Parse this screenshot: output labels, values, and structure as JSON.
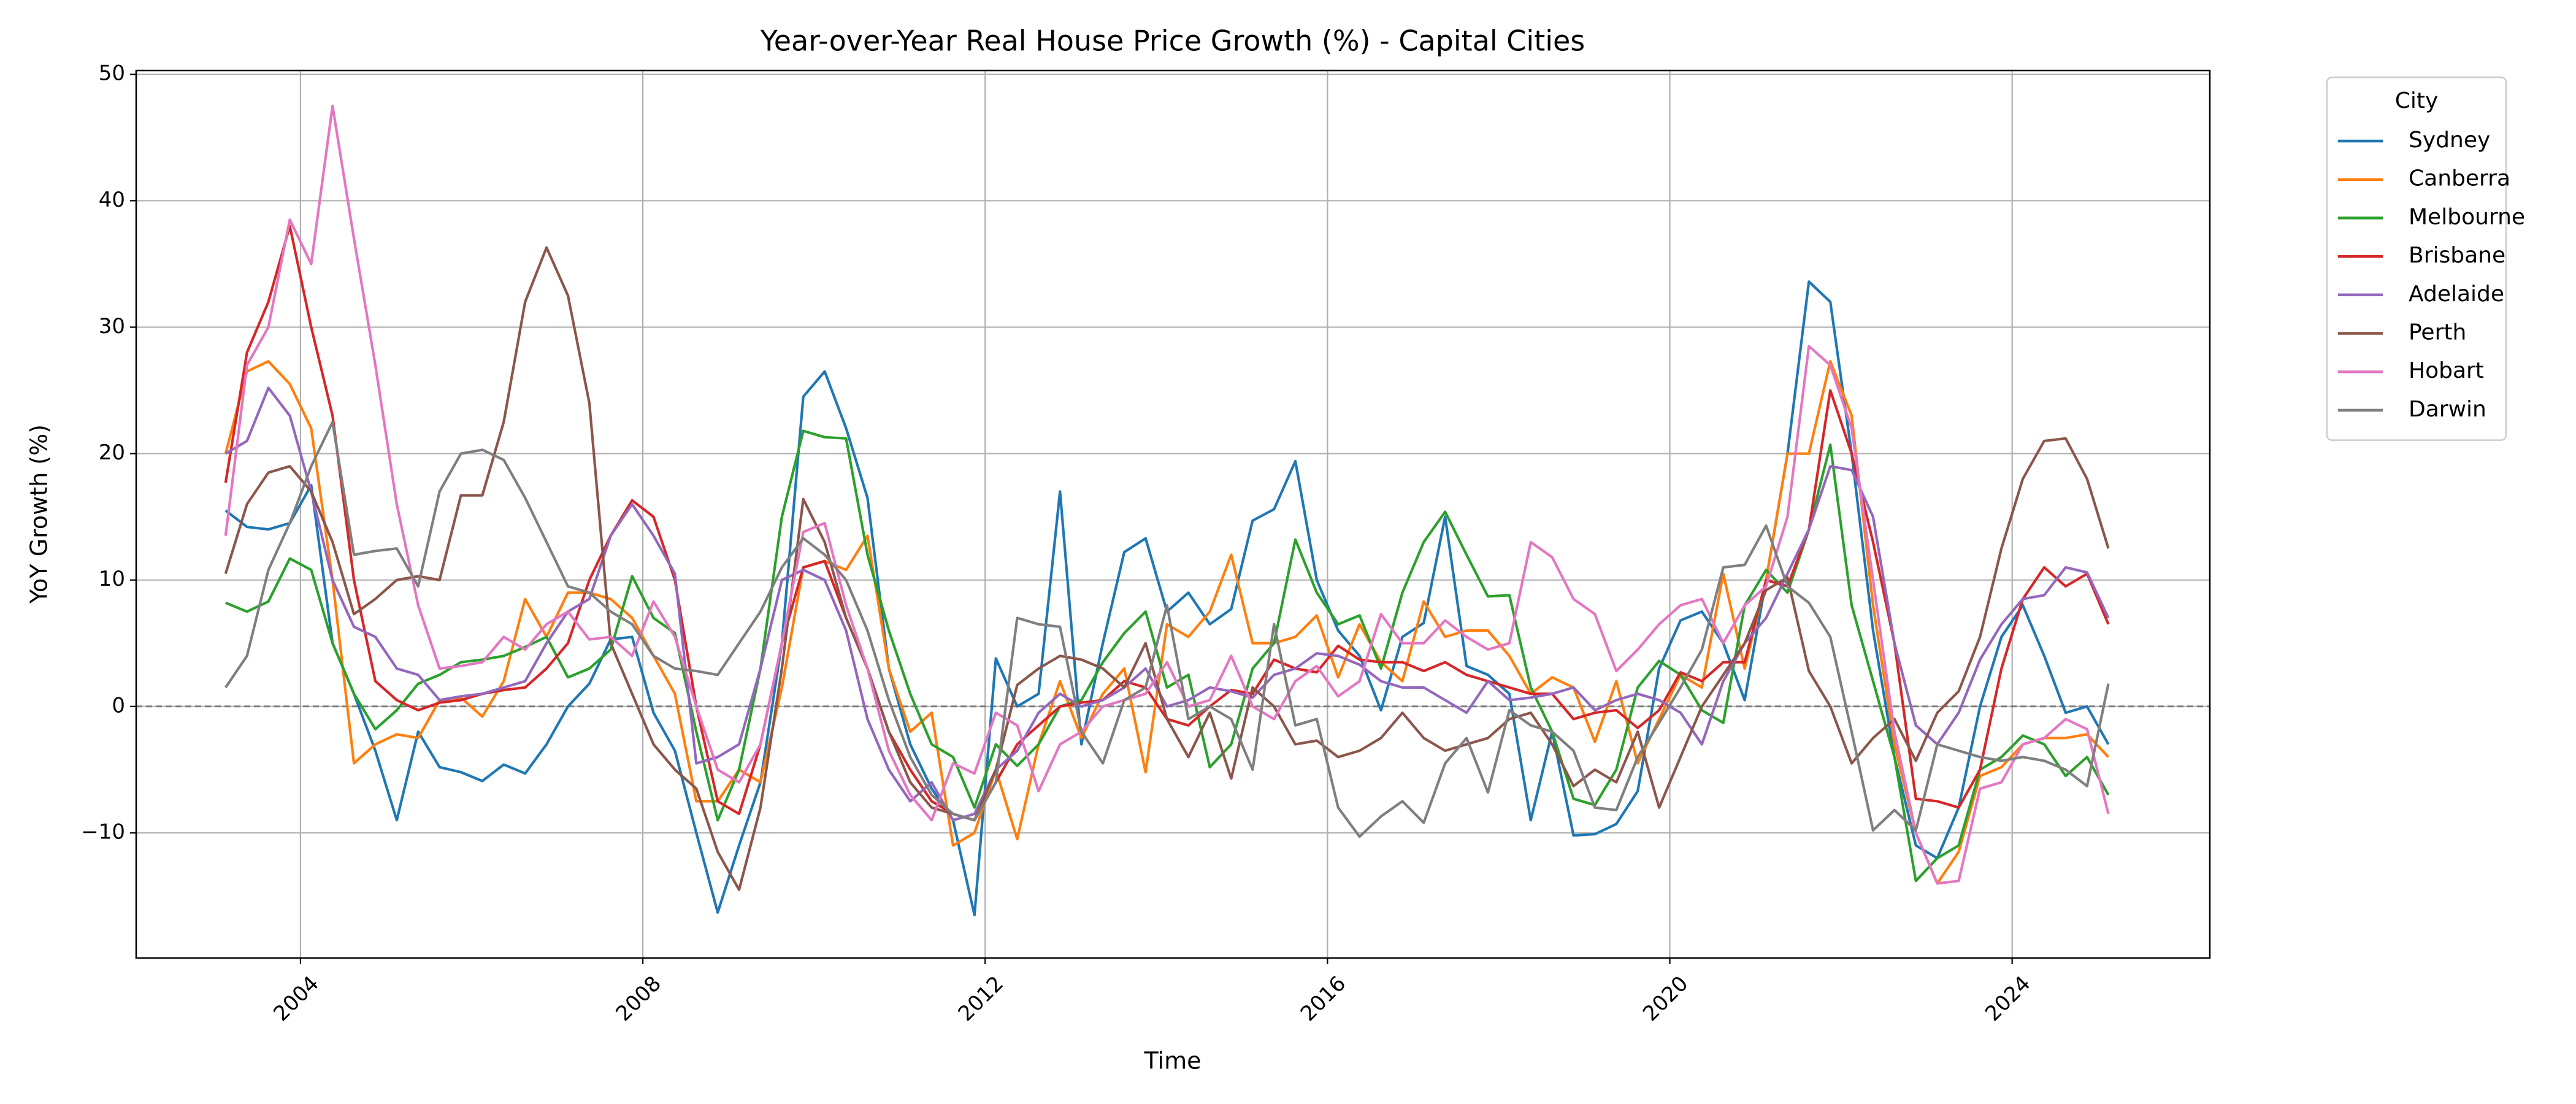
{
  "chart_data": {
    "type": "line",
    "title": "Year-over-Year Real House Price Growth (%) - Capital Cities",
    "x_label": "Time",
    "y_label": "YoY Growth (%)",
    "legend_title": "City",
    "legend_position": "outside upper right",
    "grid": true,
    "reference_line": 0,
    "xlim": [
      2002.08,
      2026.31
    ],
    "xticks": [
      2004,
      2008,
      2012,
      2016,
      2020,
      2024
    ],
    "ylim": [
      -19.9,
      50.3
    ],
    "yticks": [
      {
        "value": -10,
        "label": "−10"
      },
      0,
      10,
      20,
      30,
      40,
      50
    ],
    "x": [
      2003.125,
      2003.375,
      2003.625,
      2003.875,
      2004.125,
      2004.375,
      2004.625,
      2004.875,
      2005.125,
      2005.375,
      2005.625,
      2005.875,
      2006.125,
      2006.375,
      2006.625,
      2006.875,
      2007.125,
      2007.375,
      2007.625,
      2007.875,
      2008.125,
      2008.375,
      2008.625,
      2008.875,
      2009.125,
      2009.375,
      2009.625,
      2009.875,
      2010.125,
      2010.375,
      2010.625,
      2010.875,
      2011.125,
      2011.375,
      2011.625,
      2011.875,
      2012.125,
      2012.375,
      2012.625,
      2012.875,
      2013.125,
      2013.375,
      2013.625,
      2013.875,
      2014.125,
      2014.375,
      2014.625,
      2014.875,
      2015.125,
      2015.375,
      2015.625,
      2015.875,
      2016.125,
      2016.375,
      2016.625,
      2016.875,
      2017.125,
      2017.375,
      2017.625,
      2017.875,
      2018.125,
      2018.375,
      2018.625,
      2018.875,
      2019.125,
      2019.375,
      2019.625,
      2019.875,
      2020.125,
      2020.375,
      2020.625,
      2020.875,
      2021.125,
      2021.375,
      2021.625,
      2021.875,
      2022.125,
      2022.375,
      2022.625,
      2022.875,
      2023.125,
      2023.375,
      2023.625,
      2023.875,
      2024.125,
      2024.375,
      2024.625,
      2024.875,
      2025.125
    ],
    "series": [
      {
        "name": "Sydney",
        "color": "#1f77b4",
        "values": [
          15.5,
          14.2,
          14.0,
          14.5,
          17.5,
          5,
          1,
          -3.5,
          -9,
          -2,
          -4.8,
          -5.2,
          -5.9,
          -4.6,
          -5.3,
          -3,
          0,
          1.8,
          5.3,
          5.5,
          -0.5,
          -3.5,
          -10,
          -16.3,
          -11,
          -6,
          5,
          24.5,
          26.5,
          22,
          16.5,
          3,
          -3,
          -6.5,
          -9,
          -16.5,
          3.8,
          0,
          1,
          17,
          -3,
          5,
          12.2,
          13.3,
          7.5,
          9,
          6.5,
          7.7,
          14.7,
          15.6,
          19.4,
          10,
          6,
          4,
          -0.3,
          5.5,
          6.6,
          15,
          3.2,
          2.5,
          1,
          -9,
          -2,
          -10.2,
          -10.1,
          -9.3,
          -6.7,
          3,
          6.8,
          7.5,
          5,
          0.5,
          10,
          20,
          33.6,
          32,
          20,
          6,
          -4,
          -11,
          -12,
          -8,
          0,
          5.5,
          8,
          4,
          -0.5,
          0,
          -3
        ]
      },
      {
        "name": "Canberra",
        "color": "#ff7f0e",
        "values": [
          20,
          26.5,
          27.3,
          25.5,
          22,
          10,
          -4.5,
          -3,
          -2.2,
          -2.5,
          0.5,
          0.7,
          -0.8,
          2,
          8.5,
          5.5,
          9,
          9,
          8.5,
          7,
          4,
          1,
          -7.5,
          -7.5,
          -5,
          -6,
          1.5,
          11,
          11.5,
          10.8,
          13.5,
          3,
          -2,
          -0.5,
          -11,
          -10,
          -5,
          -10.5,
          -3,
          2,
          -2.5,
          1,
          3,
          -5.2,
          6.5,
          5.5,
          7.5,
          12,
          5,
          5,
          5.5,
          7.2,
          2.3,
          6.5,
          3.5,
          2,
          8.3,
          5.5,
          6,
          6,
          4,
          1,
          2.3,
          1.5,
          -2.8,
          2,
          -4.5,
          -1,
          2.5,
          1.5,
          10.5,
          3,
          10,
          20,
          20,
          27.3,
          23,
          8,
          -3,
          -10,
          -14,
          -11.5,
          -5.5,
          -4.8,
          -3,
          -2.5,
          -2.5,
          -2.2,
          -4
        ]
      },
      {
        "name": "Melbourne",
        "color": "#2ca02c",
        "values": [
          8.2,
          7.5,
          8.3,
          11.7,
          10.8,
          5,
          1,
          -1.8,
          -0.3,
          1.8,
          2.5,
          3.5,
          3.7,
          4,
          4.7,
          5.5,
          2.3,
          3,
          4.5,
          10.3,
          7,
          5.8,
          -2,
          -9,
          -5,
          3,
          15,
          21.8,
          21.3,
          21.2,
          12,
          6,
          1,
          -3,
          -4,
          -8,
          -3,
          -4.7,
          -3,
          0,
          0.5,
          3.5,
          5.8,
          7.5,
          1.5,
          2.5,
          -4.8,
          -3,
          3,
          5,
          13.2,
          9,
          6.5,
          7.2,
          3,
          9,
          13,
          15.4,
          12,
          8.7,
          8.8,
          1.5,
          -2,
          -7.3,
          -7.8,
          -5,
          1.5,
          3.6,
          2.5,
          -0.3,
          -1.3,
          8,
          10.8,
          9,
          14,
          20.7,
          8,
          2,
          -4,
          -13.8,
          -12,
          -11,
          -5,
          -4,
          -2.3,
          -3,
          -5.5,
          -4,
          -7
        ]
      },
      {
        "name": "Brisbane",
        "color": "#d62728",
        "values": [
          17.7,
          28,
          32,
          38,
          30,
          23,
          10,
          2,
          0.5,
          -0.3,
          0.3,
          0.5,
          1,
          1.3,
          1.5,
          3,
          5,
          10,
          13.5,
          16.3,
          15,
          10,
          0,
          -7.5,
          -8.5,
          -3,
          5,
          11,
          11.5,
          7,
          3,
          -2,
          -5,
          -7.5,
          -8.5,
          -9,
          -6,
          -3,
          -1.5,
          0,
          0.3,
          0.5,
          2,
          1.5,
          -1,
          -1.5,
          0,
          1.3,
          1,
          3.7,
          3,
          2.7,
          4.8,
          3.7,
          3.5,
          3.5,
          2.8,
          3.5,
          2.5,
          2,
          1.5,
          1,
          1,
          -1,
          -0.5,
          -0.3,
          -1.7,
          -0.3,
          2.7,
          2,
          3.5,
          3.5,
          10,
          9.5,
          14,
          25,
          20,
          13,
          5,
          -7.3,
          -7.5,
          -8,
          -5,
          3,
          8.5,
          11,
          9.5,
          10.5,
          6.5
        ]
      },
      {
        "name": "Adelaide",
        "color": "#9467bd",
        "values": [
          20,
          21,
          25.2,
          23,
          17,
          10,
          6.3,
          5.5,
          3,
          2.5,
          0.5,
          0.8,
          1,
          1.5,
          2,
          5,
          7.5,
          8.5,
          13.5,
          16,
          13.5,
          10.5,
          -4.5,
          -4,
          -3,
          3,
          10,
          10.8,
          10,
          6,
          -1,
          -5,
          -7.5,
          -6,
          -9,
          -8.5,
          -5,
          -3.5,
          -0.5,
          1,
          0,
          0.5,
          1.5,
          3,
          0,
          0.5,
          1.5,
          1.2,
          0.7,
          2.5,
          3,
          4.2,
          4,
          3.3,
          2,
          1.5,
          1.5,
          0.5,
          -0.5,
          2,
          0.5,
          0.7,
          1,
          1.5,
          -0.3,
          0.5,
          1,
          0.5,
          -0.5,
          -3,
          2,
          5,
          7,
          10.5,
          14,
          19,
          18.7,
          15,
          5,
          -1.5,
          -3,
          -0.5,
          3.7,
          6.5,
          8.5,
          8.8,
          11,
          10.6,
          7
        ]
      },
      {
        "name": "Perth",
        "color": "#8c564b",
        "values": [
          10.5,
          16,
          18.5,
          19,
          17,
          13,
          7.3,
          8.5,
          10,
          10.3,
          10,
          16.7,
          16.7,
          22.5,
          32,
          36.3,
          32.5,
          24,
          5,
          1,
          -3,
          -5,
          -6.5,
          -11.5,
          -14.5,
          -8,
          3,
          16.4,
          13,
          7,
          3,
          -2,
          -6,
          -8,
          -8.5,
          -9,
          -5,
          1.7,
          3,
          4,
          3.7,
          3,
          1.5,
          5,
          -1,
          -4,
          -0.5,
          -5.7,
          1.5,
          0,
          -3,
          -2.7,
          -4,
          -3.5,
          -2.5,
          -0.5,
          -2.5,
          -3.5,
          -3,
          -2.5,
          -1,
          -0.5,
          -3,
          -6.3,
          -5,
          -6,
          -2,
          -8,
          -4,
          0,
          2.5,
          5,
          9.2,
          10.2,
          2.8,
          0,
          -4.5,
          -2.5,
          -1,
          -4.3,
          -0.5,
          1.2,
          5.5,
          12.5,
          18,
          21,
          21.2,
          18,
          12.5
        ]
      },
      {
        "name": "Hobart",
        "color": "#e377c2",
        "values": [
          13.5,
          27,
          30,
          38.5,
          35,
          47.5,
          37,
          27,
          16,
          8,
          3,
          3.2,
          3.5,
          5.5,
          4.5,
          6.5,
          7.5,
          5.3,
          5.5,
          4,
          8.3,
          5.5,
          0,
          -5,
          -6,
          -3,
          5,
          13.8,
          14.5,
          8,
          3,
          -3.5,
          -7,
          -9,
          -4.5,
          -5.3,
          -0.5,
          -1.5,
          -6.7,
          -3,
          -2,
          0,
          0.5,
          1,
          3.5,
          0,
          0.5,
          4,
          0,
          -1,
          2,
          3.2,
          0.8,
          2,
          7.3,
          5,
          5,
          6.8,
          5.5,
          4.5,
          5,
          13,
          11.8,
          8.5,
          7.3,
          2.8,
          4.5,
          6.5,
          8,
          8.5,
          5,
          8,
          9.5,
          15,
          28.5,
          27,
          22,
          10,
          -2,
          -10,
          -14,
          -13.8,
          -6.5,
          -6,
          -3,
          -2.5,
          -1,
          -1.8,
          -8.5
        ]
      },
      {
        "name": "Darwin",
        "color": "#7f7f7f",
        "values": [
          1.5,
          4,
          10.8,
          14.5,
          19,
          22.5,
          12,
          12.3,
          12.5,
          9.5,
          17,
          20,
          20.3,
          19.5,
          16.5,
          13,
          9.5,
          9,
          7.5,
          6.5,
          4,
          3,
          2.8,
          2.5,
          5,
          7.5,
          11,
          13.3,
          12,
          10,
          6,
          0.5,
          -4,
          -7,
          -8.5,
          -9,
          -6,
          7,
          6.5,
          6.3,
          -2,
          -4.5,
          0.5,
          1.5,
          8,
          -1,
          0,
          -1,
          -5,
          6.5,
          -1.5,
          -1,
          -8,
          -10.3,
          -8.7,
          -7.5,
          -9.2,
          -4.5,
          -2.5,
          -6.8,
          -0.3,
          -1.5,
          -2,
          -3.5,
          -8,
          -8.2,
          -4,
          -1.3,
          1.5,
          4.5,
          11,
          11.2,
          14.3,
          9.5,
          8.2,
          5.5,
          -2,
          -9.8,
          -8.2,
          -9.8,
          -3,
          -3.5,
          -4,
          -4.3,
          -4,
          -4.3,
          -5,
          -6.3,
          1.8
        ]
      }
    ]
  }
}
